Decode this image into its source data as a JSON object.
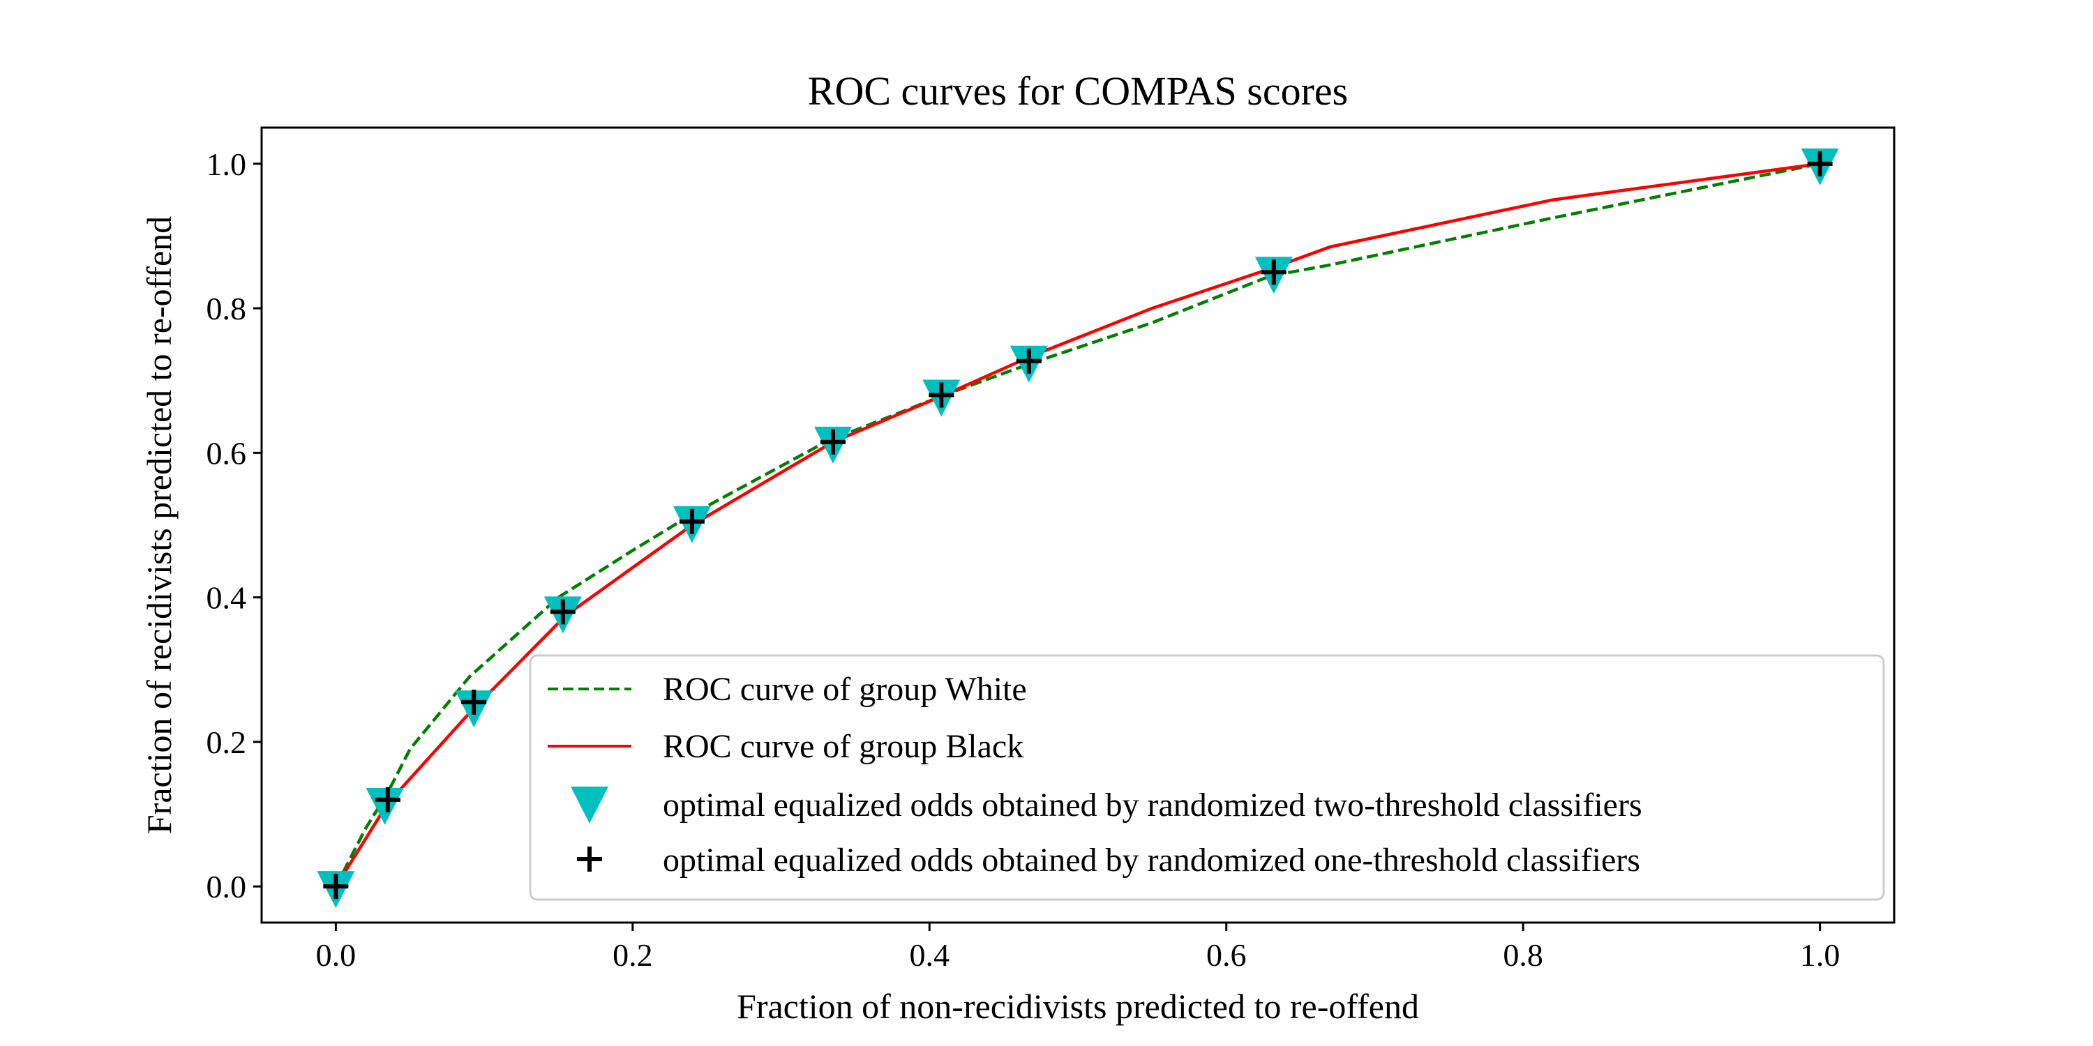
{
  "chart_data": {
    "type": "line",
    "title": "ROC curves for COMPAS scores",
    "xlabel": "Fraction of non-recidivists predicted to re-offend",
    "ylabel": "Fraction of recidivists predicted to re-offend",
    "xlim": [
      -0.05,
      1.05
    ],
    "ylim": [
      -0.05,
      1.05
    ],
    "xticks": [
      0.0,
      0.2,
      0.4,
      0.6,
      0.8,
      1.0
    ],
    "yticks": [
      0.0,
      0.2,
      0.4,
      0.6,
      0.8,
      1.0
    ],
    "xtick_labels": [
      "0.0",
      "0.2",
      "0.4",
      "0.6",
      "0.8",
      "1.0"
    ],
    "ytick_labels": [
      "0.0",
      "0.2",
      "0.4",
      "0.6",
      "0.8",
      "1.0"
    ],
    "grid": false,
    "legend_position": "lower-right",
    "series": [
      {
        "name": "ROC curve of group White",
        "kind": "line",
        "style": "dashed",
        "color": "#007f00",
        "x": [
          0.0,
          0.02,
          0.035,
          0.05,
          0.09,
          0.15,
          0.2,
          0.24,
          0.33,
          0.41,
          0.47,
          0.55,
          0.63,
          0.67,
          0.82,
          1.0
        ],
        "y": [
          0.0,
          0.08,
          0.13,
          0.19,
          0.29,
          0.4,
          0.465,
          0.515,
          0.615,
          0.68,
          0.725,
          0.78,
          0.845,
          0.86,
          0.925,
          1.0
        ]
      },
      {
        "name": "ROC curve of group Black",
        "kind": "line",
        "style": "solid",
        "color": "#ff0000",
        "x": [
          0.0,
          0.035,
          0.09,
          0.155,
          0.24,
          0.335,
          0.41,
          0.47,
          0.55,
          0.63,
          0.67,
          0.82,
          1.0
        ],
        "y": [
          0.0,
          0.115,
          0.24,
          0.375,
          0.5,
          0.615,
          0.68,
          0.735,
          0.8,
          0.855,
          0.885,
          0.95,
          1.0
        ]
      },
      {
        "name": "optimal equalized odds obtained by randomized two-threshold classifiers",
        "kind": "marker",
        "marker": "triangle-down",
        "color": "#00bfbf",
        "x": [
          0.0,
          0.033,
          0.093,
          0.153,
          0.24,
          0.335,
          0.408,
          0.467,
          0.632,
          1.0
        ],
        "y": [
          0.0,
          0.115,
          0.25,
          0.38,
          0.505,
          0.615,
          0.68,
          0.727,
          0.85,
          1.0
        ]
      },
      {
        "name": "optimal equalized odds obtained by randomized one-threshold classifiers",
        "kind": "marker",
        "marker": "plus",
        "color": "#000000",
        "x": [
          0.0,
          0.035,
          0.093,
          0.153,
          0.24,
          0.335,
          0.408,
          0.467,
          0.632,
          1.0
        ],
        "y": [
          0.0,
          0.12,
          0.255,
          0.38,
          0.505,
          0.615,
          0.68,
          0.727,
          0.85,
          1.0
        ]
      }
    ]
  }
}
